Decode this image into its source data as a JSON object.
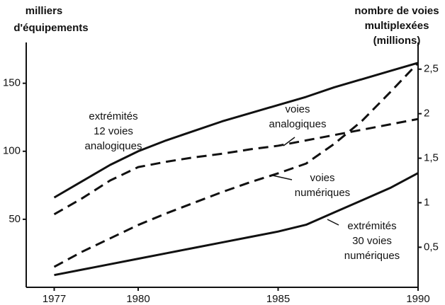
{
  "chart_data": {
    "type": "line",
    "y_label": [
      "milliers",
      "d'équipements"
    ],
    "y2_label": [
      "nombre de voies",
      "multiplexées",
      "(millions)"
    ],
    "x": [
      1977,
      1978,
      1979,
      1980,
      1981,
      1982,
      1983,
      1984,
      1985,
      1986,
      1987,
      1988,
      1989,
      1990
    ],
    "xlim": [
      1976,
      1990
    ],
    "xticks": [
      1977,
      1980,
      1985,
      1990
    ],
    "ylim": [
      0,
      180
    ],
    "yticks": [
      50,
      100,
      150
    ],
    "y2lim": [
      0.05,
      2.8
    ],
    "y2ticks": [
      {
        "value": 0.5,
        "label": "0,5"
      },
      1,
      {
        "value": 1.5,
        "label": "1,5"
      },
      2,
      {
        "value": 2.5,
        "label": "2,5"
      }
    ],
    "grid": false,
    "series": [
      {
        "name": [
          "extrémités",
          "12 voies",
          "analogiques"
        ],
        "color": "#111111",
        "style": "solid",
        "values": [
          66,
          78,
          90,
          100,
          108,
          115,
          122,
          128,
          134,
          140,
          147,
          153,
          159,
          165
        ]
      },
      {
        "name": [
          "voies",
          "analogiques"
        ],
        "color": "#111111",
        "style": "dashed",
        "axis": "y2",
        "values": [
          0.87,
          1.05,
          1.25,
          1.4,
          1.46,
          1.51,
          1.55,
          1.6,
          1.64,
          1.7,
          1.76,
          1.82,
          1.88,
          1.94
        ]
      },
      {
        "name": [
          "voies",
          "numériques"
        ],
        "color": "#111111",
        "style": "dashed",
        "axis": "y2",
        "values": [
          0.28,
          0.45,
          0.6,
          0.75,
          0.88,
          1.0,
          1.12,
          1.23,
          1.33,
          1.44,
          1.66,
          1.92,
          2.24,
          2.57
        ]
      },
      {
        "name": [
          "extrémités",
          "30 voies",
          "numériques"
        ],
        "color": "#111111",
        "style": "solid",
        "values": [
          9,
          13,
          17,
          21,
          25,
          29,
          33,
          37,
          41,
          46,
          55,
          64,
          73,
          84
        ]
      }
    ]
  }
}
